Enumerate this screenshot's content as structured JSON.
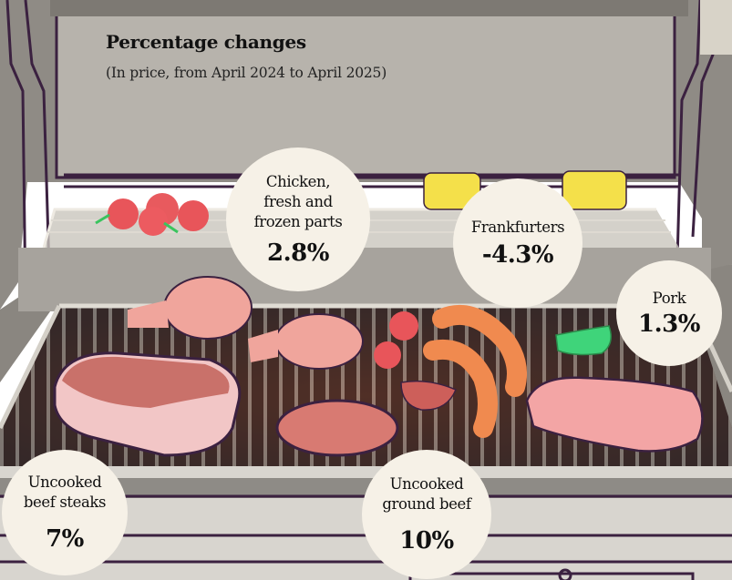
{
  "chart_data": {
    "type": "table",
    "title": "Percentage changes",
    "subtitle": "(In price, from April 2024 to April 2025)",
    "unit": "%",
    "items": [
      {
        "category": "Chicken, fresh and frozen parts",
        "lines": [
          "Chicken,",
          "fresh and",
          "frozen parts"
        ],
        "value": 2.8,
        "label": "2.8%"
      },
      {
        "category": "Frankfurters",
        "lines": [
          "Frankfurters"
        ],
        "value": -4.3,
        "label": "-4.3%"
      },
      {
        "category": "Pork",
        "lines": [
          "Pork"
        ],
        "value": 1.3,
        "label": "1.3%"
      },
      {
        "category": "Uncooked beef steaks",
        "lines": [
          "Uncooked",
          "beef steaks"
        ],
        "value": 7,
        "label": "7%"
      },
      {
        "category": "Uncooked ground beef",
        "lines": [
          "Uncooked",
          "ground beef"
        ],
        "value": 10,
        "label": "10%"
      }
    ]
  },
  "colors": {
    "bubble": "#f6f1e7",
    "grill_body": "#a9a6a0",
    "grill_dark": "#3b2a3a",
    "outline": "#3a2140",
    "meat_pink": "#f0a59c",
    "steak": "#c9716a",
    "sausage": "#f08a4f",
    "corn": "#f4e04a",
    "pepper_green": "#3fd47a",
    "tomato": "#e8555a"
  }
}
